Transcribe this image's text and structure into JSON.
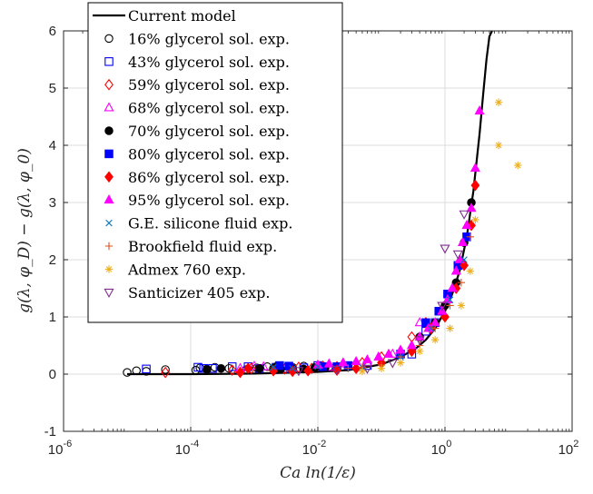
{
  "chart_data": {
    "type": "scatter",
    "xscale": "log",
    "xlim": [
      1e-06,
      100
    ],
    "ylim": [
      -1,
      6
    ],
    "xticks": [
      {
        "value": 1e-06,
        "base": "10",
        "exp": "-6"
      },
      {
        "value": 0.0001,
        "base": "10",
        "exp": "-4"
      },
      {
        "value": 0.01,
        "base": "10",
        "exp": "-2"
      },
      {
        "value": 1,
        "base": "10",
        "exp": "0"
      },
      {
        "value": 100,
        "base": "10",
        "exp": "2"
      }
    ],
    "yticks": [
      "-1",
      "0",
      "1",
      "2",
      "3",
      "4",
      "5",
      "6"
    ],
    "xlabel": "Ca ln(1/ε)",
    "ylabel": "g(λ, φ_D) − g(λ, φ_0)",
    "grid": true,
    "legend_position": "top-left",
    "colors": {
      "black": "#000000",
      "blue": "#0000ff",
      "red": "#ff0000",
      "magenta": "#ff00ff",
      "teal": "#0072bd",
      "orange": "#d95319",
      "gold": "#edb120",
      "purple": "#7e2f8e"
    },
    "model_curve": {
      "name": "Current model",
      "x": [
        1e-05,
        0.0001,
        0.001,
        0.01,
        0.03,
        0.1,
        0.2,
        0.35,
        0.5,
        0.7,
        1.0,
        1.3,
        1.7,
        2.2,
        2.8,
        3.5,
        4.0,
        4.5,
        5.0,
        5.5
      ],
      "y": [
        0.0,
        0.0,
        0.01,
        0.04,
        0.07,
        0.17,
        0.3,
        0.45,
        0.6,
        0.8,
        1.1,
        1.4,
        1.8,
        2.4,
        3.2,
        4.2,
        4.9,
        5.5,
        5.9,
        6.2
      ]
    },
    "series": [
      {
        "name": "16% glycerol sol. exp.",
        "marker": "circle-open",
        "color": "#000000",
        "x": [
          1e-05,
          1.4e-05,
          2e-05,
          4e-05,
          0.00012,
          0.00014,
          0.00018,
          0.00024,
          0.0004,
          0.00075,
          0.0011,
          0.0016,
          0.002,
          0.004,
          0.006,
          0.009,
          0.015
        ],
        "y": [
          0.03,
          0.06,
          0.05,
          0.08,
          0.07,
          0.11,
          0.09,
          0.12,
          0.1,
          0.08,
          0.11,
          0.13,
          0.1,
          0.12,
          0.14,
          0.11,
          0.13
        ]
      },
      {
        "name": "43% glycerol sol. exp.",
        "marker": "square-open",
        "color": "#0000ff",
        "x": [
          2e-05,
          0.00013,
          0.00016,
          0.00022,
          0.00045,
          0.0008,
          0.0012,
          0.0022,
          0.003,
          0.006,
          0.01,
          0.06,
          0.3,
          0.5,
          0.7
        ],
        "y": [
          0.09,
          0.12,
          0.1,
          0.1,
          0.13,
          0.13,
          0.1,
          0.12,
          0.1,
          0.11,
          0.15,
          0.15,
          0.35,
          0.75,
          0.9
        ]
      },
      {
        "name": "59% glycerol sol. exp.",
        "marker": "diamond-open",
        "color": "#ff0000",
        "x": [
          4e-05,
          0.00045,
          0.0009,
          0.003,
          0.005,
          0.008,
          0.012,
          0.02,
          0.05,
          0.1,
          0.3,
          0.5
        ],
        "y": [
          0.03,
          0.07,
          0.1,
          0.09,
          0.12,
          0.1,
          0.14,
          0.13,
          0.2,
          0.3,
          0.65,
          0.9
        ]
      },
      {
        "name": "68% glycerol sol. exp.",
        "marker": "triangle-up-open",
        "color": "#ff00ff",
        "x": [
          0.0006,
          0.001,
          0.0014,
          0.004,
          0.015,
          0.025,
          0.06,
          0.15,
          0.4
        ],
        "y": [
          0.1,
          0.14,
          0.13,
          0.12,
          0.12,
          0.18,
          0.2,
          0.35,
          0.9
        ]
      },
      {
        "name": "70% glycerol sol. exp.",
        "marker": "circle-filled",
        "color": "#000000",
        "x": [
          0.00018,
          0.0003,
          0.0012,
          0.0022,
          0.0026,
          0.004,
          0.006,
          0.009,
          0.013,
          0.02,
          0.4,
          0.7,
          1.0,
          1.5,
          2.0,
          2.6
        ],
        "y": [
          0.08,
          0.1,
          0.1,
          0.13,
          0.09,
          0.1,
          0.09,
          0.12,
          0.11,
          0.1,
          0.65,
          0.9,
          1.2,
          1.6,
          2.3,
          3.0
        ]
      },
      {
        "name": "80% glycerol sol. exp.",
        "marker": "square-filled",
        "color": "#0000ff",
        "x": [
          0.0025,
          0.0035,
          0.012,
          0.02,
          0.03,
          0.2,
          0.5,
          0.8,
          1.1,
          1.6,
          2.2
        ],
        "y": [
          0.15,
          0.14,
          0.13,
          0.13,
          0.15,
          0.35,
          0.9,
          1.1,
          1.4,
          1.9,
          2.4
        ]
      },
      {
        "name": "86% glycerol sol. exp.",
        "marker": "diamond-filled",
        "color": "#ff0000",
        "x": [
          0.0006,
          0.0008,
          0.002,
          0.004,
          0.007,
          0.02,
          0.04,
          0.1,
          0.3,
          0.6,
          1.0,
          1.5,
          2.0,
          2.6,
          3.0
        ],
        "y": [
          0.03,
          0.1,
          0.06,
          0.05,
          0.06,
          0.07,
          0.1,
          0.2,
          0.4,
          0.8,
          1.0,
          1.5,
          1.9,
          2.6,
          3.3
        ]
      },
      {
        "name": "95% glycerol sol. exp.",
        "marker": "triangle-up-filled",
        "color": "#ff00ff",
        "x": [
          0.01,
          0.015,
          0.025,
          0.04,
          0.06,
          0.09,
          0.13,
          0.2,
          0.3,
          0.4,
          0.55,
          0.7,
          0.9,
          1.1,
          1.3,
          1.5,
          1.7,
          1.9,
          2.2,
          2.6,
          3.0,
          3.5
        ],
        "y": [
          0.16,
          0.18,
          0.2,
          0.22,
          0.25,
          0.3,
          0.35,
          0.42,
          0.5,
          0.65,
          0.8,
          0.9,
          1.1,
          1.3,
          1.5,
          1.8,
          2.0,
          2.3,
          2.6,
          2.9,
          3.6,
          4.6
        ]
      },
      {
        "name": "G.E. silicone fluid exp.",
        "marker": "x",
        "color": "#0072bd",
        "x": [
          0.002,
          0.004,
          0.01,
          0.05,
          0.2,
          0.6,
          1.2,
          2.0
        ],
        "y": [
          0.12,
          0.1,
          0.13,
          0.12,
          0.3,
          0.8,
          1.3,
          2.0
        ]
      },
      {
        "name": "Brookfield fluid exp.",
        "marker": "plus",
        "color": "#d95319",
        "x": [
          0.03,
          0.05,
          0.1,
          0.2,
          0.4,
          0.7,
          1.2,
          1.8,
          2.5
        ],
        "y": [
          0.1,
          0.12,
          0.16,
          0.3,
          0.5,
          0.8,
          1.2,
          1.6,
          2.4
        ]
      },
      {
        "name": "Admex 760 exp.",
        "marker": "asterisk",
        "color": "#edb120",
        "x": [
          0.05,
          0.1,
          0.2,
          0.4,
          0.7,
          1.2,
          1.8,
          2.5,
          3.0,
          7.0,
          7.0,
          14.0
        ],
        "y": [
          0.05,
          0.1,
          0.2,
          0.4,
          0.6,
          0.8,
          1.2,
          1.8,
          2.7,
          4.75,
          4.0,
          3.65
        ]
      },
      {
        "name": "Santicizer 405 exp.",
        "marker": "triangle-down-open",
        "color": "#7e2f8e",
        "x": [
          0.005,
          0.02,
          0.06,
          0.15,
          0.4,
          0.9,
          1.0,
          1.6,
          2.0
        ],
        "y": [
          0.06,
          0.08,
          0.1,
          0.2,
          0.6,
          1.2,
          2.2,
          2.1,
          2.8
        ]
      }
    ]
  }
}
